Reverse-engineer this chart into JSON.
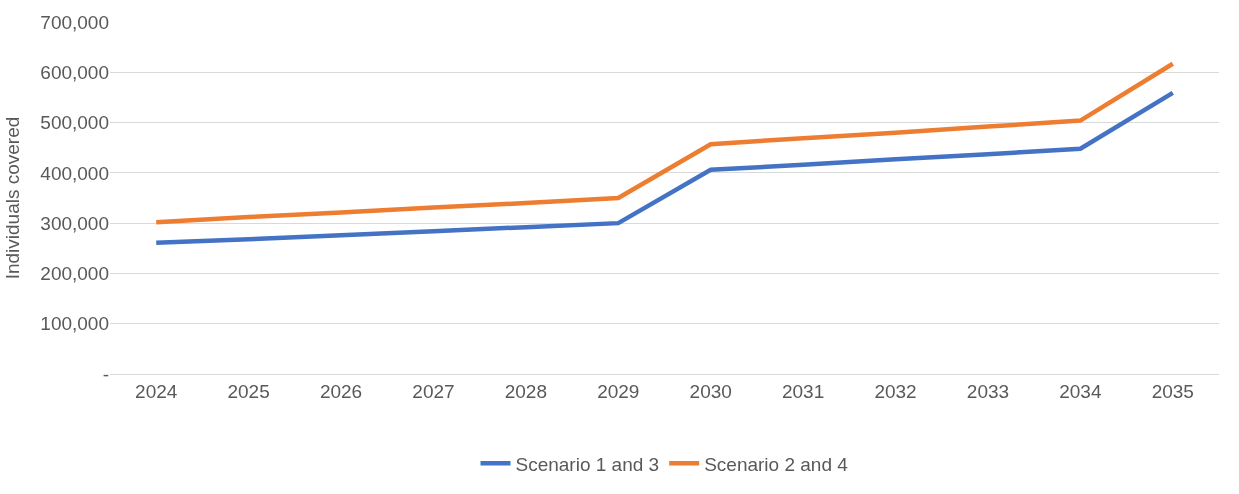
{
  "chart_data": {
    "type": "line",
    "ylabel": "Individuals covered",
    "categories": [
      "2024",
      "2025",
      "2026",
      "2027",
      "2028",
      "2029",
      "2030",
      "2031",
      "2032",
      "2033",
      "2034",
      "2035"
    ],
    "series": [
      {
        "name": "Scenario 1 and 3",
        "color": "#4472c4",
        "values": [
          261000,
          268000,
          276000,
          284000,
          292000,
          300000,
          406000,
          416000,
          427000,
          437000,
          448000,
          559000
        ]
      },
      {
        "name": "Scenario 2 and 4",
        "color": "#ed7d31",
        "values": [
          302000,
          312000,
          321000,
          331000,
          340000,
          350000,
          457000,
          469000,
          480000,
          492000,
          504000,
          617000
        ]
      }
    ],
    "ylim": [
      0,
      700000
    ],
    "yticks": [
      {
        "value": 0,
        "label": "-"
      },
      {
        "value": 100000,
        "label": "100,000"
      },
      {
        "value": 200000,
        "label": "200,000"
      },
      {
        "value": 300000,
        "label": "300,000"
      },
      {
        "value": 400000,
        "label": "400,000"
      },
      {
        "value": 500000,
        "label": "500,000"
      },
      {
        "value": 600000,
        "label": "600,000"
      },
      {
        "value": 700000,
        "label": "700,000"
      }
    ],
    "grid": "y",
    "legend": "bottom",
    "marker": "none",
    "line_style": "solid"
  }
}
